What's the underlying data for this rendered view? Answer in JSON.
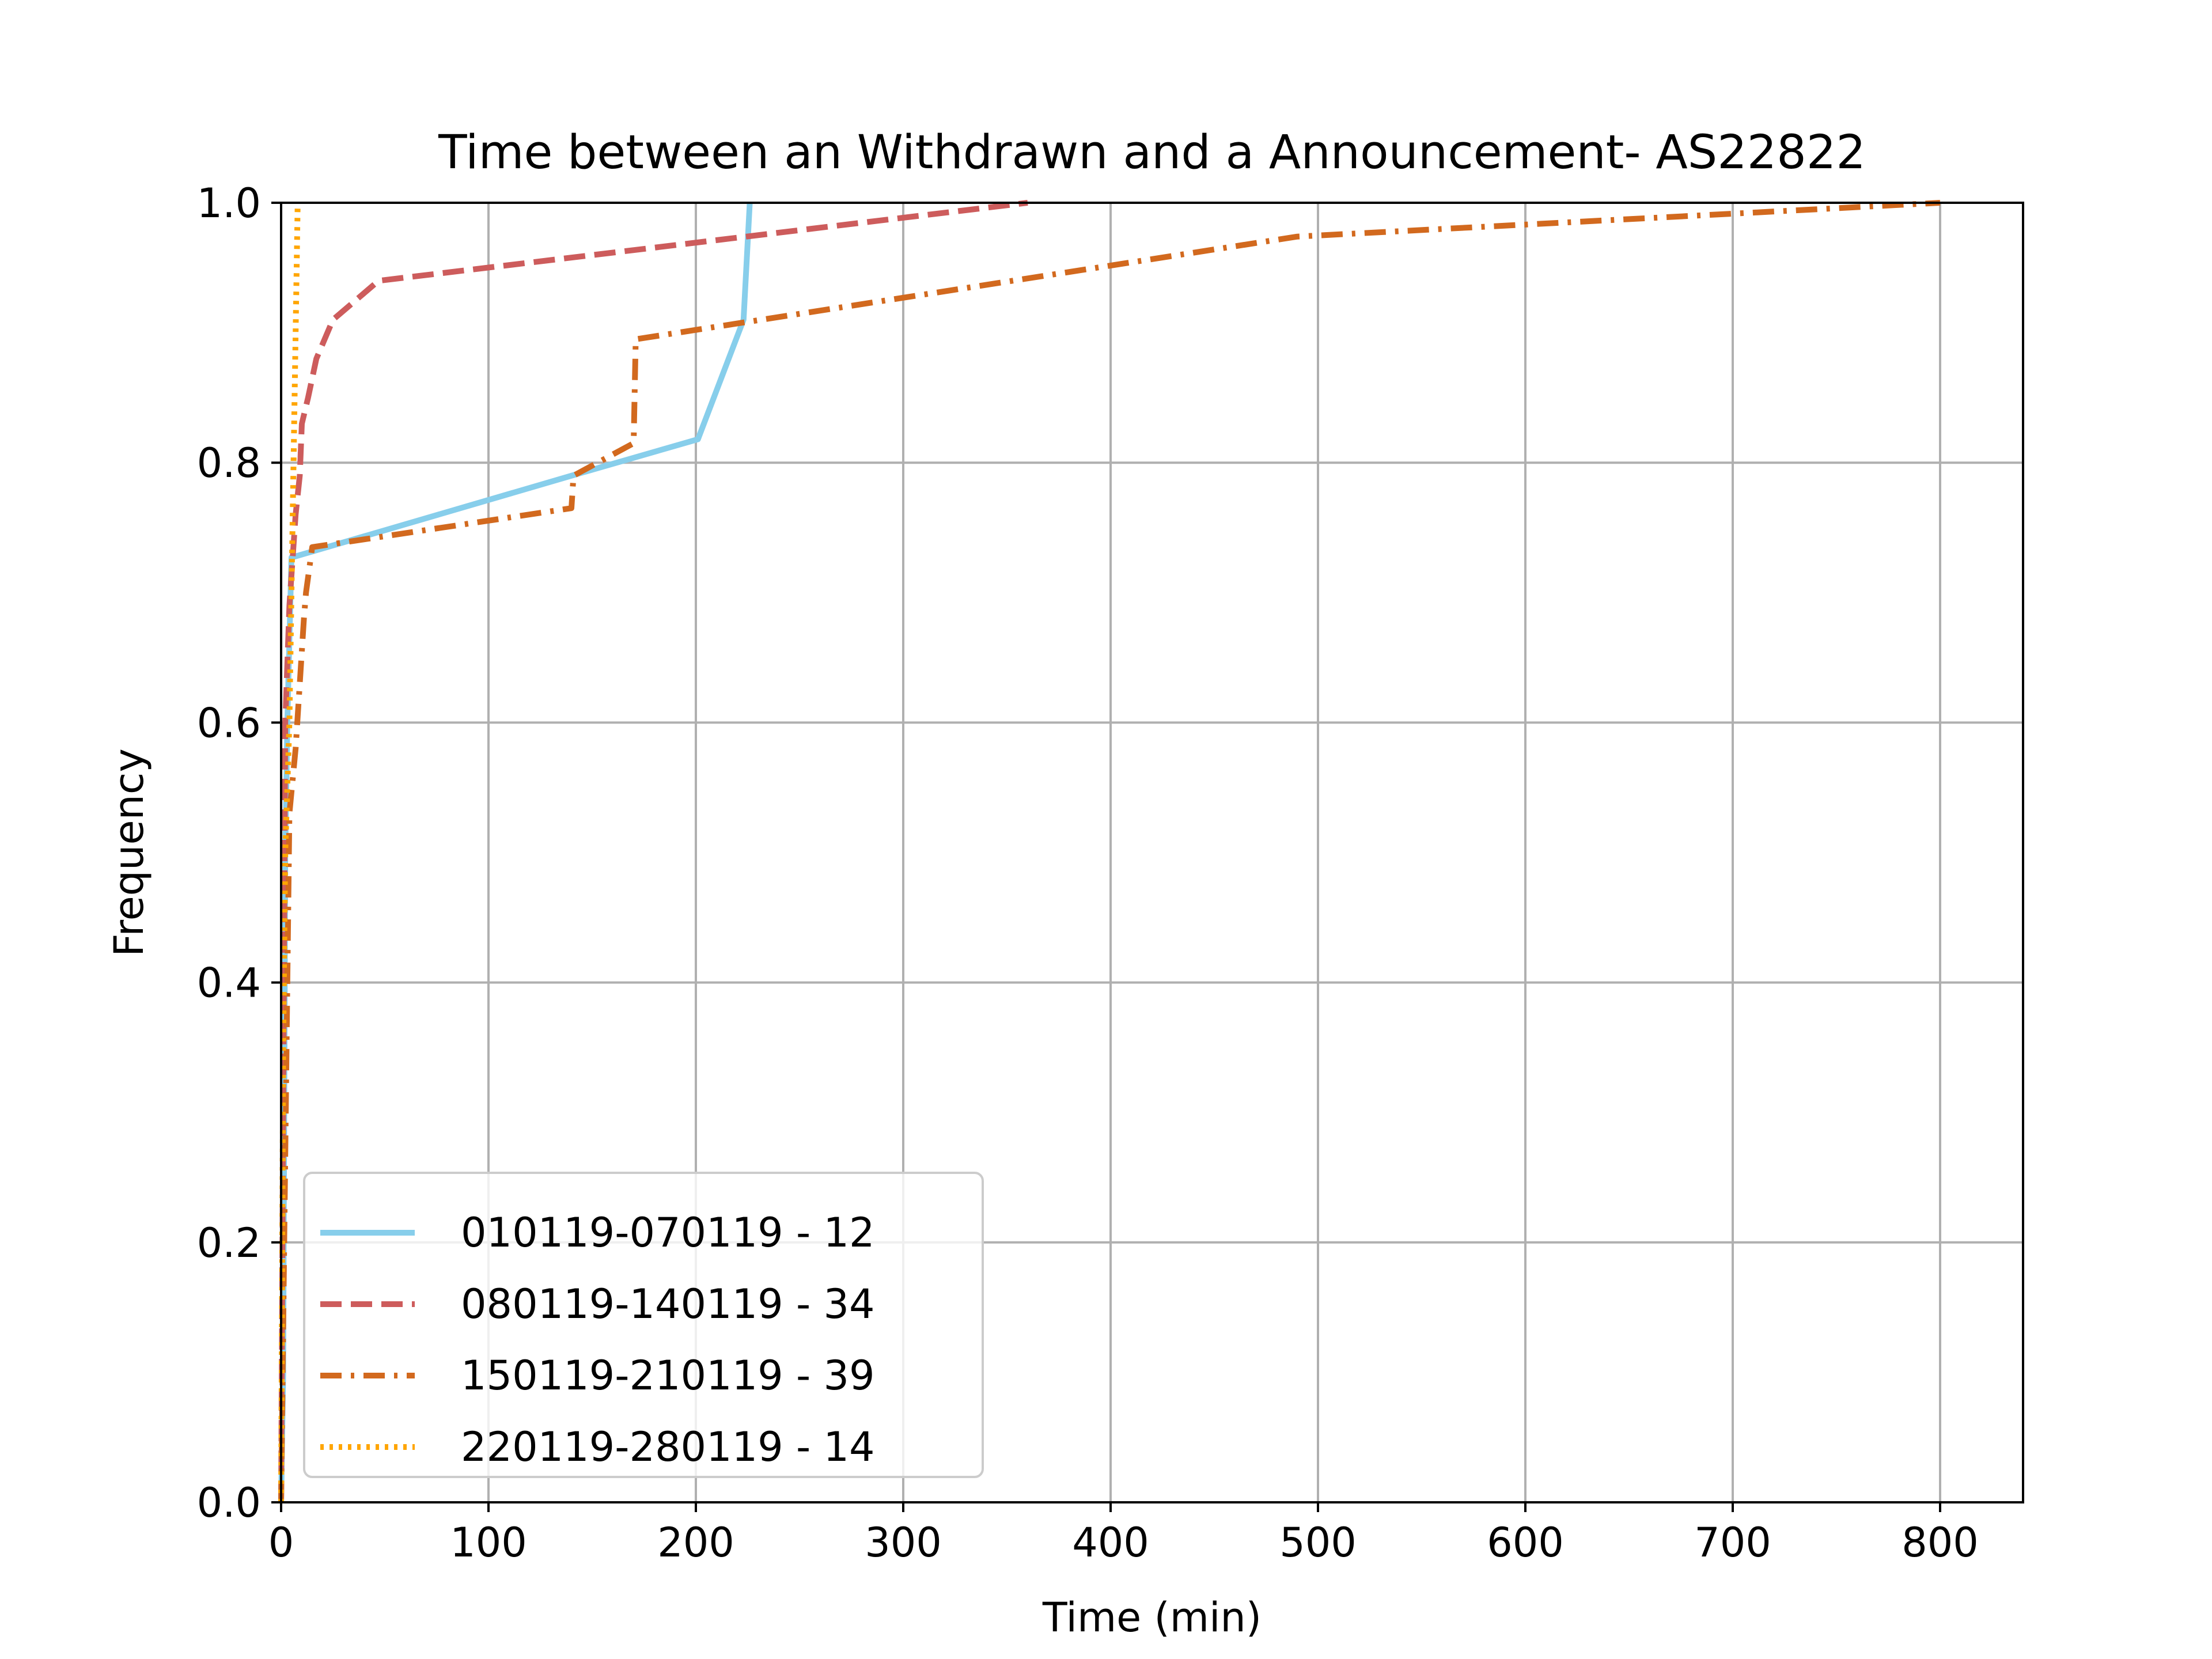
{
  "chart_data": {
    "type": "line",
    "title": "Time between an Withdrawn and a Announcement- AS22822",
    "xlabel": "Time (min)",
    "ylabel": "Frequency",
    "xlim": [
      0,
      840
    ],
    "ylim": [
      0,
      1.0
    ],
    "xticks": [
      0,
      100,
      200,
      300,
      400,
      500,
      600,
      700,
      800
    ],
    "xtick_labels": [
      "0",
      "100",
      "200",
      "300",
      "400",
      "500",
      "600",
      "700",
      "800"
    ],
    "yticks": [
      0.0,
      0.2,
      0.4,
      0.6,
      0.8,
      1.0
    ],
    "ytick_labels": [
      "0.0",
      "0.2",
      "0.4",
      "0.6",
      "0.8",
      "1.0"
    ],
    "grid": true,
    "legend_position": "lower-left",
    "series": [
      {
        "name": "010119-070119 - 12",
        "color": "#87ceeb",
        "dash": "solid",
        "x": [
          0,
          1,
          2,
          3,
          5,
          140,
          201,
          223,
          226
        ],
        "y": [
          0.0,
          0.1,
          0.5,
          0.6,
          0.727,
          0.79,
          0.818,
          0.91,
          1.0
        ]
      },
      {
        "name": "080119-140119 - 34",
        "color": "#cd5c5c",
        "dash": "dashed",
        "x": [
          0,
          1,
          2,
          4,
          7,
          9,
          10,
          13,
          17,
          25,
          47,
          360
        ],
        "y": [
          0.0,
          0.3,
          0.6,
          0.69,
          0.76,
          0.79,
          0.83,
          0.85,
          0.88,
          0.91,
          0.94,
          1.0
        ]
      },
      {
        "name": "150119-210119 - 39",
        "color": "#d2691e",
        "dash": "dashdot",
        "x": [
          0,
          3,
          4,
          7,
          9,
          11,
          12,
          15,
          140,
          141,
          170,
          171,
          490,
          800
        ],
        "y": [
          0.0,
          0.4,
          0.53,
          0.58,
          0.63,
          0.68,
          0.7,
          0.735,
          0.765,
          0.79,
          0.815,
          0.895,
          0.974,
          1.0
        ]
      },
      {
        "name": "220119-280119 - 14",
        "color": "#ffa500",
        "dash": "dotted",
        "x": [
          0,
          1,
          2,
          4,
          5,
          6,
          7,
          8
        ],
        "y": [
          0.0,
          0.35,
          0.5,
          0.6,
          0.7,
          0.8,
          0.9,
          1.0
        ]
      }
    ]
  }
}
